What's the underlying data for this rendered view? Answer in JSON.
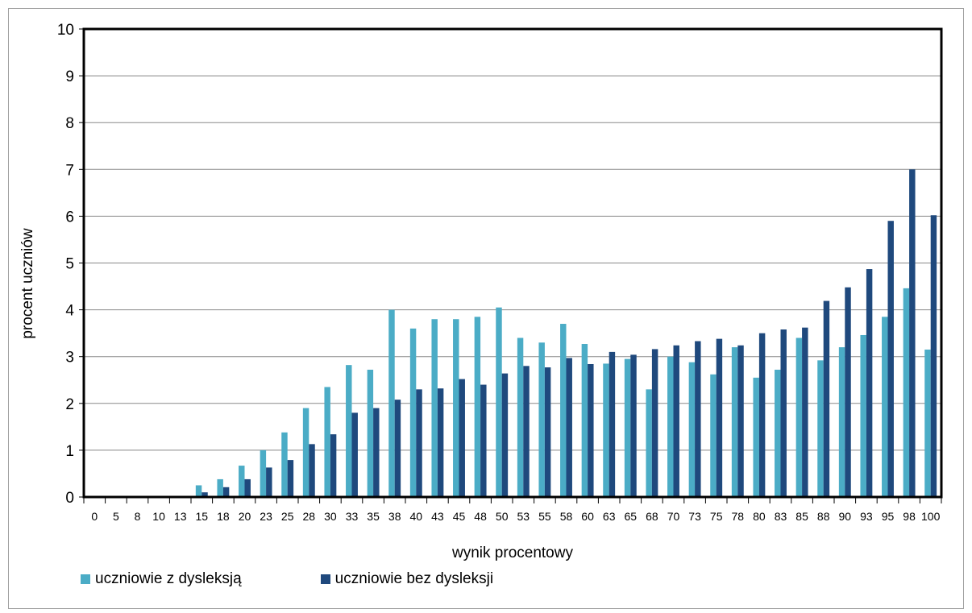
{
  "chart_data": {
    "type": "bar",
    "title": "",
    "xlabel": "wynik procentowy",
    "ylabel": "procent uczniów",
    "ylim": [
      0,
      10
    ],
    "yticks": [
      0,
      1,
      2,
      3,
      4,
      5,
      6,
      7,
      8,
      9,
      10
    ],
    "grid": true,
    "legend_position": "bottom-left",
    "categories": [
      "0",
      "5",
      "8",
      "10",
      "13",
      "15",
      "18",
      "20",
      "23",
      "25",
      "28",
      "30",
      "33",
      "35",
      "38",
      "40",
      "43",
      "45",
      "48",
      "50",
      "53",
      "55",
      "58",
      "60",
      "63",
      "65",
      "68",
      "70",
      "73",
      "75",
      "78",
      "80",
      "83",
      "85",
      "88",
      "90",
      "93",
      "95",
      "98",
      "100"
    ],
    "series": [
      {
        "name": "uczniowie z dysleksją",
        "color": "#4BACC6",
        "values": [
          0,
          0,
          0,
          0,
          0.02,
          0.25,
          0.38,
          0.67,
          1.0,
          1.38,
          1.9,
          2.35,
          2.82,
          2.72,
          4.0,
          3.6,
          3.8,
          3.8,
          3.85,
          4.05,
          3.4,
          3.3,
          3.7,
          3.27,
          2.85,
          2.95,
          2.3,
          3.0,
          2.88,
          2.62,
          3.2,
          2.55,
          2.72,
          3.4,
          2.92,
          3.2,
          3.46,
          3.85,
          4.46,
          3.15
        ]
      },
      {
        "name": "uczniowie bez dysleksji",
        "color": "#1F497D",
        "values": [
          0,
          0,
          0,
          0,
          0.02,
          0.1,
          0.21,
          0.38,
          0.63,
          0.79,
          1.13,
          1.34,
          1.8,
          1.9,
          2.08,
          2.3,
          2.32,
          2.52,
          2.4,
          2.64,
          2.8,
          2.77,
          2.97,
          2.84,
          3.1,
          3.04,
          3.16,
          3.24,
          3.33,
          3.38,
          3.24,
          3.5,
          3.58,
          3.62,
          4.19,
          4.48,
          4.87,
          5.9,
          7.0,
          6.02
        ]
      }
    ]
  }
}
